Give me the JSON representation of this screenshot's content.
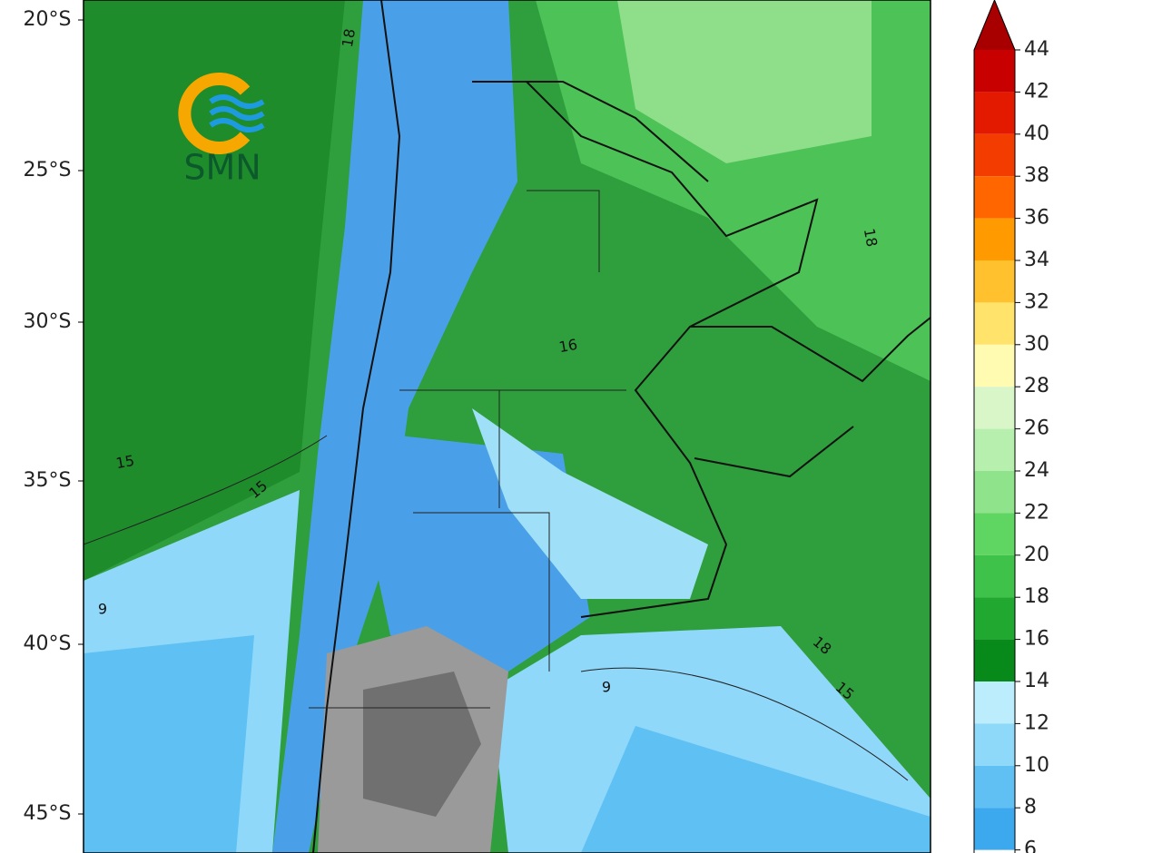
{
  "map": {
    "logo_text": "SMN",
    "lat_labels": [
      "20°S",
      "25°S",
      "30°S",
      "35°S",
      "40°S",
      "45°S"
    ],
    "contour_labels": [
      "18",
      "15",
      "15",
      "9",
      "9",
      "18",
      "15",
      "18",
      "16"
    ]
  },
  "colorbar": {
    "ticks": [
      44,
      42,
      40,
      38,
      36,
      34,
      32,
      30,
      28,
      26,
      24,
      22,
      20,
      18,
      16,
      14,
      12,
      10,
      8,
      6
    ],
    "colors": [
      "#a80000",
      "#c80000",
      "#e31a00",
      "#f23c00",
      "#ff6600",
      "#ff9a00",
      "#ffc22e",
      "#ffe36a",
      "#fffbb0",
      "#d9f6c9",
      "#b6efae",
      "#8fe38b",
      "#5fd661",
      "#3fc24a",
      "#20a830",
      "#078a1a",
      "#bcedfc",
      "#8ed8fa",
      "#60c0f4",
      "#3ca8ee"
    ]
  }
}
